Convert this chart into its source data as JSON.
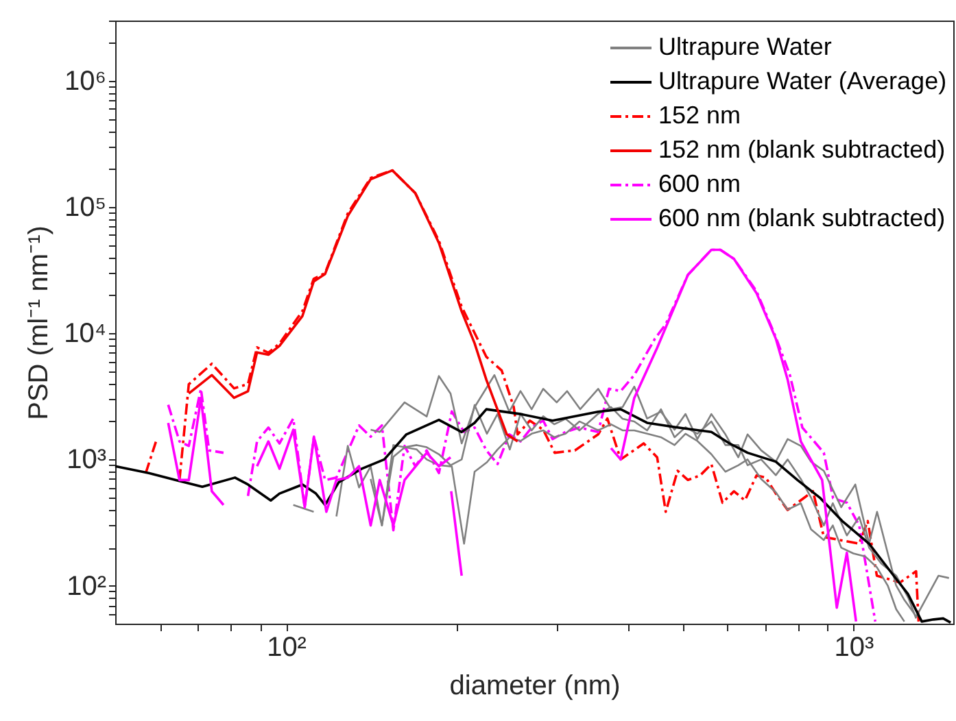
{
  "chart_data": {
    "type": "line",
    "xlabel": "diameter (nm)",
    "ylabel": "PSD (ml⁻¹ nm⁻¹)",
    "log": "xy",
    "grid": false,
    "legend": "top right",
    "marker": "none",
    "xlim": [
      50,
      1500
    ],
    "ylim": [
      50,
      3000000
    ],
    "xticks": [
      {
        "value": 60,
        "label": null
      },
      {
        "value": 70,
        "label": null
      },
      {
        "value": 80,
        "label": null
      },
      {
        "value": 90,
        "label": null
      },
      {
        "value": 100,
        "label": "10²"
      },
      {
        "value": 200,
        "label": null
      },
      {
        "value": 300,
        "label": null
      },
      {
        "value": 400,
        "label": null
      },
      {
        "value": 500,
        "label": null
      },
      {
        "value": 600,
        "label": null
      },
      {
        "value": 700,
        "label": null
      },
      {
        "value": 800,
        "label": null
      },
      {
        "value": 900,
        "label": null
      },
      {
        "value": 1000,
        "label": "10³"
      }
    ],
    "yticks": [
      {
        "value": 60,
        "label": null
      },
      {
        "value": 70,
        "label": null
      },
      {
        "value": 80,
        "label": null
      },
      {
        "value": 90,
        "label": null
      },
      {
        "value": 100,
        "label": "10²"
      },
      {
        "value": 200,
        "label": null
      },
      {
        "value": 300,
        "label": null
      },
      {
        "value": 400,
        "label": null
      },
      {
        "value": 500,
        "label": null
      },
      {
        "value": 600,
        "label": null
      },
      {
        "value": 700,
        "label": null
      },
      {
        "value": 800,
        "label": null
      },
      {
        "value": 900,
        "label": null
      },
      {
        "value": 1000,
        "label": "10³"
      },
      {
        "value": 2000,
        "label": null
      },
      {
        "value": 3000,
        "label": null
      },
      {
        "value": 4000,
        "label": null
      },
      {
        "value": 5000,
        "label": null
      },
      {
        "value": 6000,
        "label": null
      },
      {
        "value": 7000,
        "label": null
      },
      {
        "value": 8000,
        "label": null
      },
      {
        "value": 9000,
        "label": null
      },
      {
        "value": 10000,
        "label": "10⁴"
      },
      {
        "value": 20000,
        "label": null
      },
      {
        "value": 30000,
        "label": null
      },
      {
        "value": 40000,
        "label": null
      },
      {
        "value": 50000,
        "label": null
      },
      {
        "value": 60000,
        "label": null
      },
      {
        "value": 70000,
        "label": null
      },
      {
        "value": 80000,
        "label": null
      },
      {
        "value": 90000,
        "label": null
      },
      {
        "value": 100000,
        "label": "10⁵"
      },
      {
        "value": 200000,
        "label": null
      },
      {
        "value": 300000,
        "label": null
      },
      {
        "value": 400000,
        "label": null
      },
      {
        "value": 500000,
        "label": null
      },
      {
        "value": 600000,
        "label": null
      },
      {
        "value": 700000,
        "label": null
      },
      {
        "value": 800000,
        "label": null
      },
      {
        "value": 900000,
        "label": null
      },
      {
        "value": 1000000,
        "label": "10⁶"
      },
      {
        "value": 2000000,
        "label": null
      },
      {
        "value": 3000000,
        "label": null
      }
    ],
    "series": [
      {
        "name": "Ultrapure Water",
        "color": "#808080",
        "line_style": "solid",
        "x": [
          141,
          146.3,
          161.8,
          177,
          186,
          195,
          204,
          215,
          233,
          247.5,
          259,
          271,
          284,
          300,
          313,
          330,
          355,
          374,
          392,
          411,
          433,
          458,
          484,
          506,
          531,
          562,
          595,
          627,
          651,
          688,
          730,
          766,
          808,
          842,
          887,
          952,
          1008,
          1066,
          1101,
          1189,
          1228,
          1291,
          1413,
          1474
        ],
        "values": [
          1720,
          1650,
          2830,
          2190,
          4580,
          3330,
          1340,
          2600,
          4660,
          2390,
          3480,
          2500,
          3630,
          2830,
          3480,
          2500,
          3630,
          2500,
          2600,
          3780,
          2110,
          2390,
          1720,
          2290,
          1450,
          2290,
          1580,
          1040,
          1580,
          1180,
          960,
          1450,
          1280,
          960,
          813,
          418,
          633,
          215,
          385,
          101,
          78,
          57,
          120,
          115
        ]
      },
      {
        "color": "#808080",
        "line_style": "solid",
        "x": [
          103,
          111.9,
          116,
          141,
          147.6,
          154.6,
          161.8,
          170,
          177,
          186,
          195,
          204,
          215,
          226,
          236,
          248,
          259,
          271,
          284,
          297,
          311,
          329,
          355,
          374,
          392,
          411,
          433,
          458,
          484,
          506,
          531,
          562,
          595,
          627,
          651,
          688,
          730,
          766,
          808,
          842,
          887,
          920,
          974,
          1024,
          1066,
          1120,
          1190,
          1250,
          1290
        ],
        "values": [
          436,
          385,
          null,
          700,
          300,
          1300,
          1250,
          1300,
          1250,
          1100,
          900,
          1000,
          2700,
          1600,
          2300,
          1200,
          2300,
          1700,
          2200,
          1900,
          2100,
          1700,
          2300,
          2600,
          2100,
          2000,
          1700,
          2500,
          1500,
          1800,
          1600,
          2000,
          1300,
          1300,
          900,
          1000,
          750,
          1000,
          700,
          500,
          300,
          450,
          250,
          350,
          200,
          150,
          120,
          80,
          55
        ]
      },
      {
        "color": "#808080",
        "line_style": "solid",
        "x": [
          122.7,
          128.5,
          134.5,
          141,
          147.6,
          154.6,
          162,
          170,
          177,
          186,
          196,
          206,
          215,
          226,
          236,
          248,
          259,
          271,
          284,
          297,
          311,
          329,
          355,
          374,
          392,
          411,
          433,
          458,
          484,
          506,
          531,
          562,
          595,
          627,
          651,
          688,
          730,
          766,
          808,
          842,
          887,
          920,
          952,
          1000,
          1050,
          1100,
          1150,
          1190,
          1230
        ],
        "values": [
          354,
          1280,
          600,
          880,
          300,
          1050,
          1250,
          1200,
          1000,
          900,
          880,
          215,
          800,
          950,
          1200,
          1500,
          1400,
          1600,
          1700,
          1500,
          1600,
          2000,
          1700,
          1900,
          1700,
          1700,
          1600,
          1500,
          1300,
          1600,
          1400,
          1100,
          800,
          900,
          1000,
          700,
          550,
          400,
          450,
          280,
          230,
          300,
          200,
          180,
          170,
          140,
          100,
          65,
          52
        ]
      },
      {
        "name": "Ultrapure Water (Average)",
        "color": "#000000",
        "line_style": "solid",
        "x": [
          50,
          57.3,
          71.2,
          81.3,
          85.7,
          94,
          97.4,
          106.9,
          112.9,
          117.2,
          123.9,
          136,
          149,
          163,
          186,
          204,
          215,
          225.5,
          259,
          295,
          355,
          389,
          433,
          490,
          562,
          605,
          651,
          730,
          797,
          875,
          956,
          1066,
          1178,
          1248,
          1320,
          1385,
          1440,
          1484
        ],
        "values": [
          884,
          780,
          607,
          718,
          633,
          473,
          537,
          633,
          537,
          436,
          660,
          845,
          1000,
          1580,
          2060,
          1650,
          1950,
          2500,
          2290,
          2030,
          2390,
          2500,
          1950,
          1790,
          1650,
          1340,
          1130,
          960,
          687,
          493,
          325,
          215,
          120,
          86,
          52,
          54,
          55,
          51
        ]
      },
      {
        "name": "152 nm",
        "color": "#ff0000",
        "line_style": "dashdot",
        "x": [
          56.6,
          59.2,
          62,
          64.9,
          67.4,
          74,
          81,
          85.7,
          88.9,
          93.1,
          97.4,
          106.9,
          111.9,
          117.2,
          128.5,
          141,
          154,
          169,
          186,
          204,
          225.5,
          240,
          252,
          256,
          269,
          284,
          297.6,
          323,
          355,
          368.5,
          389,
          427,
          451,
          467,
          490,
          511,
          537,
          562,
          588,
          616,
          644,
          675,
          701,
          730,
          766,
          849,
          887,
          1024,
          1060,
          1100,
          1209,
          1290,
          1303
        ],
        "values": [
          780,
          1455,
          null,
          687,
          3940,
          5730,
          3660,
          3960,
          7730,
          7000,
          8300,
          15000,
          27000,
          30000,
          89000,
          170000,
          195000,
          129000,
          54000,
          16200,
          6500,
          5060,
          2600,
          1580,
          2030,
          1720,
          1130,
          1180,
          1580,
          2110,
          1000,
          1340,
          1040,
          385,
          813,
          688,
          747,
          920,
          454,
          560,
          473,
          747,
          718,
          537,
          398,
          560,
          243,
          215,
          325,
          120,
          106,
          130,
          52
        ]
      },
      {
        "name": "152 nm (blank subtracted)",
        "color": "#f20000",
        "line_style": "solid",
        "x": [
          67.4,
          74,
          81,
          85.7,
          88.9,
          93.1,
          97.4,
          106.9,
          111.9,
          117.2,
          128.5,
          141,
          154,
          169,
          186,
          204,
          215,
          225.5,
          245,
          256
        ],
        "values": [
          3330,
          4660,
          3080,
          3470,
          7050,
          6760,
          7950,
          13700,
          25700,
          29500,
          85000,
          166000,
          195000,
          129000,
          51900,
          14900,
          8320,
          4280,
          1580,
          1390
        ]
      },
      {
        "name": "600 nm",
        "color": "#ff00ff",
        "line_style": "dashdot",
        "x": [
          62,
          64.9,
          67.4,
          70.8,
          73.2,
          77.6,
          82,
          85.7,
          88.9,
          93.1,
          97.4,
          103,
          107.9,
          112,
          117.2,
          122.7,
          134.5,
          141,
          147.6,
          154.6,
          161.8,
          169,
          177,
          186,
          196,
          206,
          215,
          225.5,
          236,
          247.5,
          259,
          271,
          284,
          295,
          311,
          329,
          355,
          371,
          389,
          411,
          447,
          467,
          511,
          562,
          583,
          616,
          675,
          730,
          773,
          813,
          887,
          921,
          974,
          1024,
          1093
        ],
        "values": [
          2710,
          1390,
          1280,
          3630,
          1180,
          1130,
          null,
          514,
          1390,
          1790,
          1340,
          2110,
          418,
          1516,
          687,
          718,
          1860,
          1516,
          1860,
          275,
          1280,
          884,
          1180,
          780,
          2400,
          1650,
          1790,
          1180,
          920,
          1580,
          1390,
          1790,
          2030,
          1450,
          1650,
          1790,
          1650,
          3630,
          3480,
          4660,
          9060,
          11800,
          29000,
          45800,
          45800,
          38800,
          21500,
          9300,
          4660,
          1790,
          1130,
          493,
          454,
          300,
          52
        ]
      },
      {
        "name": "600 nm (blank subtracted)",
        "color": "#ff00ff",
        "line_style": "solid",
        "x": [
          62,
          64.9,
          67.4,
          70.8,
          74,
          77.6,
          82,
          88.9,
          93.1,
          97.4,
          103,
          107.9,
          112,
          117.8,
          122.7,
          128.5,
          134.5,
          141,
          146.3,
          154.6,
          161.8,
          177,
          186,
          195,
          195.3,
          195.5,
          204,
          300,
          374,
          389,
          411,
          451,
          511,
          562,
          583,
          616,
          675,
          730,
          766,
          808,
          881,
          935,
          974,
          1011
        ],
        "values": [
          1945,
          687,
          687,
          3070,
          560,
          436,
          null,
          884,
          1390,
          845,
          1720,
          418,
          1516,
          385,
          687,
          718,
          884,
          300,
          687,
          300,
          687,
          1130,
          884,
          1040,
          null,
          560,
          120,
          null,
          1230,
          1000,
          3070,
          7670,
          29000,
          45800,
          45800,
          38800,
          20800,
          9060,
          4280,
          1390,
          687,
          67,
          182,
          52
        ]
      }
    ]
  }
}
